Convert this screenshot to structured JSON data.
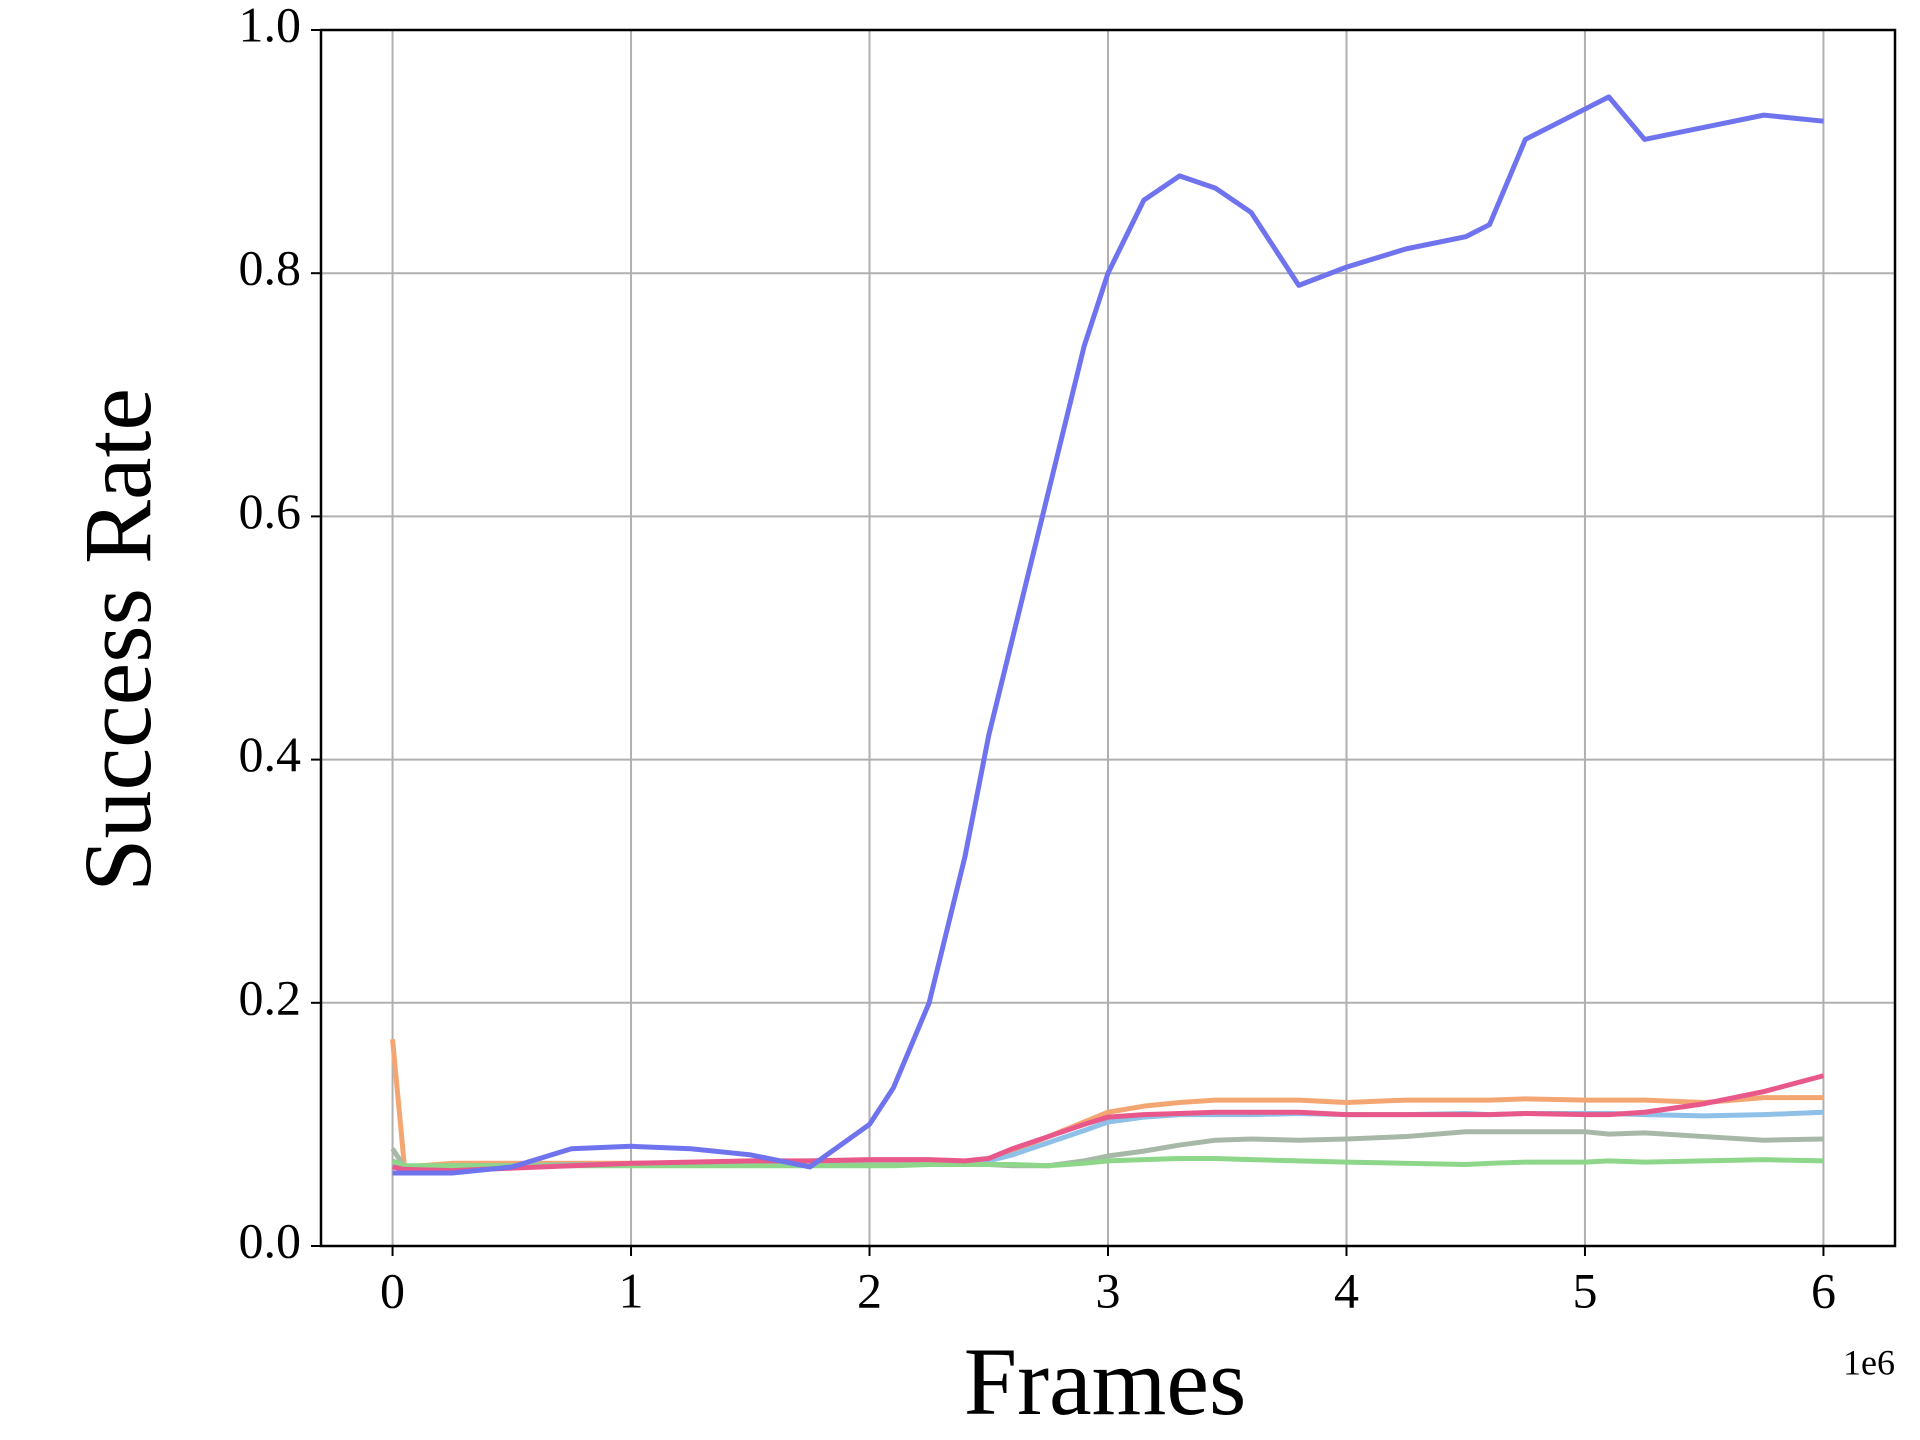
{
  "chart_data": {
    "type": "line",
    "x_label": "Frames",
    "y_label": "Success Rate",
    "x_offset_label": "1e6",
    "x": [
      0,
      0.05,
      0.25,
      0.5,
      0.75,
      1,
      1.25,
      1.5,
      1.75,
      2,
      2.1,
      2.25,
      2.4,
      2.5,
      2.6,
      2.75,
      2.9,
      3,
      3.15,
      3.3,
      3.45,
      3.6,
      3.8,
      4,
      4.25,
      4.5,
      4.6,
      4.75,
      5,
      5.1,
      5.25,
      5.5,
      5.75,
      6
    ],
    "series": [
      {
        "color": "#f4a672",
        "values": [
          0.17,
          0.065,
          0.068,
          0.068,
          0.068,
          0.068,
          0.068,
          0.068,
          0.068,
          0.068,
          0.068,
          0.068,
          0.068,
          0.07,
          0.078,
          0.09,
          0.102,
          0.11,
          0.115,
          0.118,
          0.12,
          0.12,
          0.12,
          0.118,
          0.12,
          0.12,
          0.12,
          0.121,
          0.12,
          0.12,
          0.12,
          0.118,
          0.122,
          0.122
        ]
      },
      {
        "color": "#8ec0e8",
        "values": [
          0.065,
          0.065,
          0.066,
          0.066,
          0.067,
          0.067,
          0.067,
          0.067,
          0.068,
          0.068,
          0.068,
          0.069,
          0.069,
          0.07,
          0.075,
          0.085,
          0.095,
          0.102,
          0.106,
          0.108,
          0.108,
          0.108,
          0.109,
          0.108,
          0.108,
          0.109,
          0.108,
          0.109,
          0.109,
          0.109,
          0.108,
          0.107,
          0.108,
          0.11
        ]
      },
      {
        "color": "#a8b8a8",
        "values": [
          0.08,
          0.065,
          0.066,
          0.066,
          0.067,
          0.067,
          0.067,
          0.067,
          0.067,
          0.067,
          0.067,
          0.067,
          0.067,
          0.067,
          0.066,
          0.066,
          0.07,
          0.074,
          0.078,
          0.083,
          0.087,
          0.088,
          0.087,
          0.088,
          0.09,
          0.094,
          0.094,
          0.094,
          0.094,
          0.092,
          0.093,
          0.09,
          0.087,
          0.088
        ]
      },
      {
        "color": "#8dd68a",
        "values": [
          0.07,
          0.066,
          0.066,
          0.066,
          0.066,
          0.066,
          0.066,
          0.066,
          0.066,
          0.066,
          0.066,
          0.067,
          0.067,
          0.067,
          0.067,
          0.066,
          0.068,
          0.07,
          0.071,
          0.072,
          0.072,
          0.071,
          0.07,
          0.069,
          0.068,
          0.067,
          0.068,
          0.069,
          0.069,
          0.07,
          0.069,
          0.07,
          0.071,
          0.07
        ]
      },
      {
        "color": "#e8588a",
        "values": [
          0.065,
          0.063,
          0.062,
          0.064,
          0.066,
          0.068,
          0.069,
          0.07,
          0.07,
          0.071,
          0.071,
          0.071,
          0.07,
          0.072,
          0.08,
          0.09,
          0.1,
          0.106,
          0.108,
          0.109,
          0.11,
          0.11,
          0.11,
          0.108,
          0.108,
          0.108,
          0.108,
          0.109,
          0.108,
          0.108,
          0.11,
          0.117,
          0.127,
          0.14
        ]
      },
      {
        "color": "#6f73ee",
        "values": [
          0.06,
          0.06,
          0.06,
          0.065,
          0.08,
          0.082,
          0.08,
          0.075,
          0.065,
          0.1,
          0.13,
          0.2,
          0.32,
          0.42,
          0.5,
          0.62,
          0.74,
          0.8,
          0.86,
          0.88,
          0.87,
          0.85,
          0.79,
          0.805,
          0.82,
          0.83,
          0.84,
          0.91,
          0.935,
          0.945,
          0.91,
          0.92,
          0.93,
          0.925
        ]
      }
    ],
    "xlim": [
      -0.3,
      6.3
    ],
    "xticks": [
      0,
      1,
      2,
      3,
      4,
      5,
      6
    ],
    "ylim": [
      0,
      1
    ],
    "yticks": [
      {
        "value": 0,
        "label": "0.0"
      },
      0.2,
      0.4,
      0.6,
      0.8,
      {
        "value": 1,
        "label": "1.0"
      }
    ],
    "grid": true
  }
}
